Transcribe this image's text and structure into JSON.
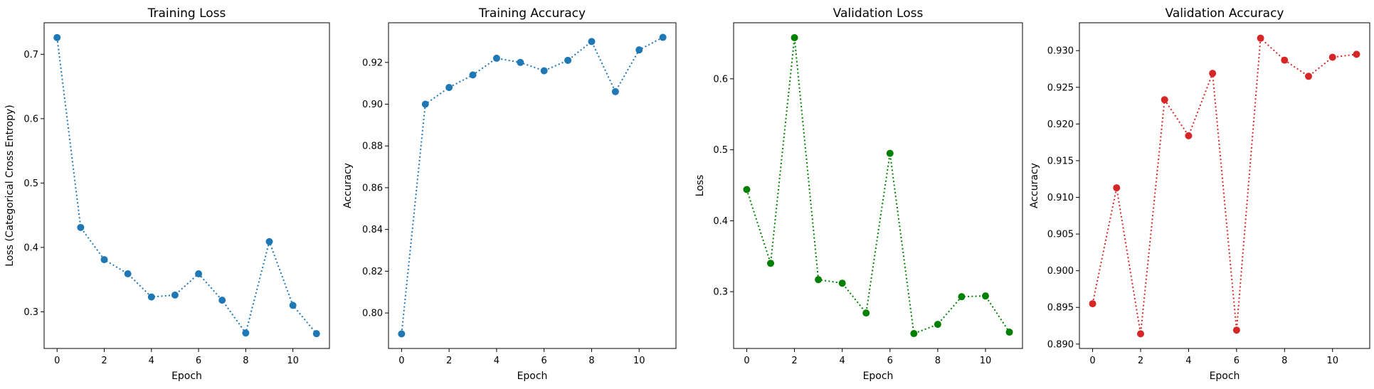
{
  "chart_data": [
    {
      "type": "line",
      "title": "Training Loss",
      "xlabel": "Epoch",
      "ylabel": "Loss (Categorical Cross Entropy)",
      "x": [
        0,
        1,
        2,
        3,
        4,
        5,
        6,
        7,
        8,
        9,
        10,
        11
      ],
      "series": [
        {
          "values": [
            0.726,
            0.431,
            0.381,
            0.359,
            0.323,
            0.326,
            0.359,
            0.318,
            0.267,
            0.409,
            0.31,
            0.266
          ],
          "color": "#1f77b4"
        }
      ],
      "xticks": [
        0,
        2,
        4,
        6,
        8,
        10
      ],
      "yticks": [
        0.3,
        0.4,
        0.5,
        0.6,
        0.7
      ],
      "ytick_labels": [
        "0.3",
        "0.4",
        "0.5",
        "0.6",
        "0.7"
      ],
      "xlim": [
        -0.55,
        11.55
      ],
      "ylim": [
        0.243,
        0.749
      ],
      "line_style": "dotted",
      "marker": "circle",
      "grid": false
    },
    {
      "type": "line",
      "title": "Training Accuracy",
      "xlabel": "Epoch",
      "ylabel": "Accuracy",
      "x": [
        0,
        1,
        2,
        3,
        4,
        5,
        6,
        7,
        8,
        9,
        10,
        11
      ],
      "series": [
        {
          "values": [
            0.79,
            0.9,
            0.908,
            0.914,
            0.922,
            0.92,
            0.916,
            0.921,
            0.93,
            0.906,
            0.926,
            0.932
          ],
          "color": "#1f77b4"
        }
      ],
      "xticks": [
        0,
        2,
        4,
        6,
        8,
        10
      ],
      "yticks": [
        0.8,
        0.82,
        0.84,
        0.86,
        0.88,
        0.9,
        0.92
      ],
      "ytick_labels": [
        "0.80",
        "0.82",
        "0.84",
        "0.86",
        "0.88",
        "0.90",
        "0.92"
      ],
      "xlim": [
        -0.55,
        11.55
      ],
      "ylim": [
        0.783,
        0.939
      ],
      "line_style": "dotted",
      "marker": "circle",
      "grid": false
    },
    {
      "type": "line",
      "title": "Validation Loss",
      "xlabel": "Epoch",
      "ylabel": "Loss",
      "x": [
        0,
        1,
        2,
        3,
        4,
        5,
        6,
        7,
        8,
        9,
        10,
        11
      ],
      "series": [
        {
          "values": [
            0.444,
            0.34,
            0.658,
            0.317,
            0.312,
            0.27,
            0.495,
            0.241,
            0.254,
            0.293,
            0.294,
            0.243
          ],
          "color": "#008000"
        }
      ],
      "xticks": [
        0,
        2,
        4,
        6,
        8,
        10
      ],
      "yticks": [
        0.3,
        0.4,
        0.5,
        0.6
      ],
      "ytick_labels": [
        "0.3",
        "0.4",
        "0.5",
        "0.6"
      ],
      "xlim": [
        -0.55,
        11.55
      ],
      "ylim": [
        0.22,
        0.679
      ],
      "line_style": "dotted",
      "marker": "circle",
      "grid": false
    },
    {
      "type": "line",
      "title": "Validation Accuracy",
      "xlabel": "Epoch",
      "ylabel": "Accuracy",
      "x": [
        0,
        1,
        2,
        3,
        4,
        5,
        6,
        7,
        8,
        9,
        10,
        11
      ],
      "series": [
        {
          "values": [
            0.8955,
            0.9113,
            0.8914,
            0.9233,
            0.9184,
            0.9269,
            0.8919,
            0.9317,
            0.9287,
            0.9265,
            0.9291,
            0.9295
          ],
          "color": "#d62728"
        }
      ],
      "xticks": [
        0,
        2,
        4,
        6,
        8,
        10
      ],
      "yticks": [
        0.89,
        0.895,
        0.9,
        0.905,
        0.91,
        0.915,
        0.92,
        0.925,
        0.93
      ],
      "ytick_labels": [
        "0.890",
        "0.895",
        "0.900",
        "0.905",
        "0.910",
        "0.915",
        "0.920",
        "0.925",
        "0.930"
      ],
      "xlim": [
        -0.55,
        11.55
      ],
      "ylim": [
        0.8894,
        0.9338
      ],
      "line_style": "dotted",
      "marker": "circle",
      "grid": false
    }
  ]
}
